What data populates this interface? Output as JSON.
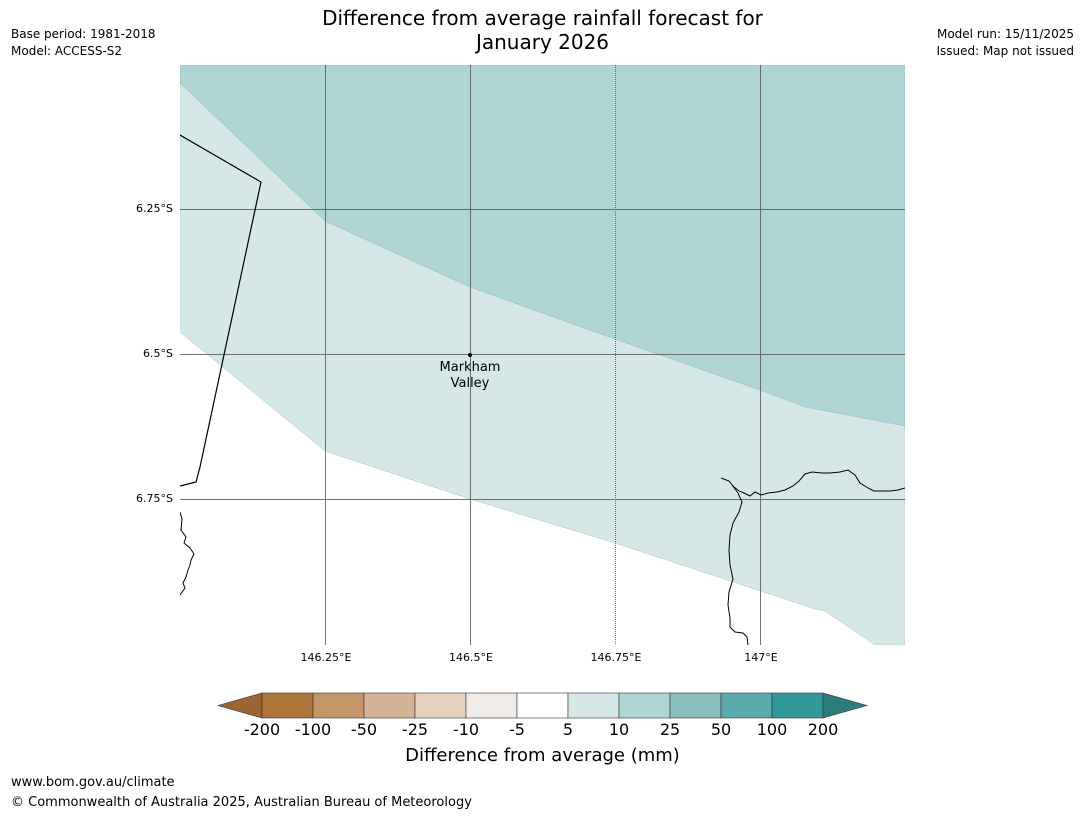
{
  "title": {
    "line1": "Difference from average rainfall forecast for",
    "line2": "January 2026"
  },
  "meta": {
    "base_period": "Base period: 1981-2018",
    "model": "Model: ACCESS-S2",
    "model_run": "Model run: 15/11/2025",
    "issued": "Issued: Map not issued"
  },
  "map": {
    "latitude_labels": [
      "6.25°S",
      "6.5°S",
      "6.75°S"
    ],
    "longitude_labels": [
      "146.25°E",
      "146.5°E",
      "146.75°E",
      "147°E"
    ],
    "place": {
      "line1": "Markham",
      "line2": "Valley"
    }
  },
  "colorbar": {
    "title": "Difference from average (mm)",
    "ticks": [
      "-200",
      "-100",
      "-50",
      "-25",
      "-10",
      "-5",
      "5",
      "10",
      "25",
      "50",
      "100",
      "200"
    ],
    "colors": [
      "#ad7539",
      "#c49569",
      "#d4b294",
      "#e6d0be",
      "#efebe8",
      "#ffffff",
      "#d5e8e7",
      "#aed4d4",
      "#8bbfbe",
      "#5aabab",
      "#31999a"
    ],
    "low_extend_color": "#9c6531",
    "high_extend_color": "#2b7c7d"
  },
  "footer": {
    "url": "www.bom.gov.au/climate",
    "copyright": "© Commonwealth of Australia 2025, Australian Bureau of Meteorology"
  }
}
